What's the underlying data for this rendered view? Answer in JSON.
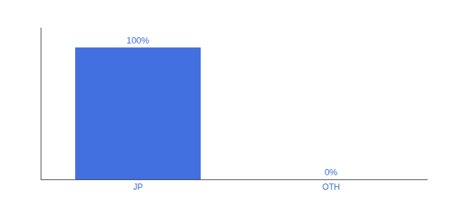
{
  "chart_data": {
    "type": "bar",
    "categories": [
      "JP",
      "OTH"
    ],
    "values": [
      100,
      0
    ],
    "value_labels": [
      "100%",
      "0%"
    ],
    "data_labels": true,
    "color": "#4370e0",
    "ylim": [
      0,
      115
    ],
    "yticks": [],
    "tick_labels": "x",
    "grid": false
  }
}
